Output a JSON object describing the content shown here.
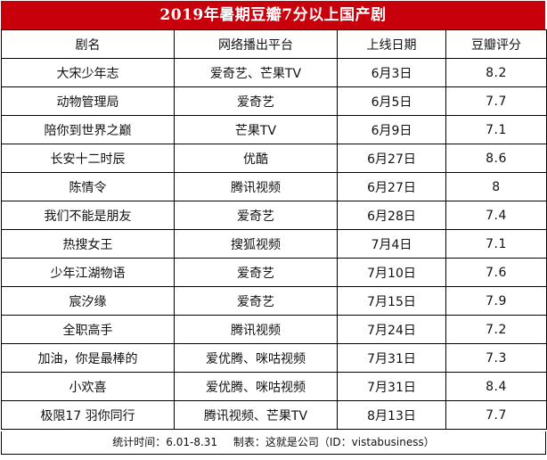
{
  "title": "2019年暑期豆瓣7分以上国产剧",
  "columns": {
    "name": "剧名",
    "platform": "网络播出平台",
    "date": "上线日期",
    "score": "豆瓣评分"
  },
  "rows": [
    {
      "name": "大宋少年志",
      "platform": "爱奇艺、芒果TV",
      "date": "6月3日",
      "score": "8.2"
    },
    {
      "name": "动物管理局",
      "platform": "爱奇艺",
      "date": "6月5日",
      "score": "7.7"
    },
    {
      "name": "陪你到世界之巅",
      "platform": "芒果TV",
      "date": "6月9日",
      "score": "7.1"
    },
    {
      "name": "长安十二时辰",
      "platform": "优酷",
      "date": "6月27日",
      "score": "8.6"
    },
    {
      "name": "陈情令",
      "platform": "腾讯视频",
      "date": "6月27日",
      "score": "8"
    },
    {
      "name": "我们不能是朋友",
      "platform": "爱奇艺",
      "date": "6月28日",
      "score": "7.4"
    },
    {
      "name": "热搜女王",
      "platform": "搜狐视频",
      "date": "7月4日",
      "score": "7.1"
    },
    {
      "name": "少年江湖物语",
      "platform": "爱奇艺",
      "date": "7月10日",
      "score": "7.6"
    },
    {
      "name": "宸汐缘",
      "platform": "爱奇艺",
      "date": "7月15日",
      "score": "7.9"
    },
    {
      "name": "全职高手",
      "platform": "腾讯视频",
      "date": "7月24日",
      "score": "7.2"
    },
    {
      "name": "加油，你是最棒的",
      "platform": "爱优腾、咪咕视频",
      "date": "7月31日",
      "score": "7.3"
    },
    {
      "name": "小欢喜",
      "platform": "爱优腾、咪咕视频",
      "date": "7月31日",
      "score": "8.4"
    },
    {
      "name": "极限17 羽你同行",
      "platform": "腾讯视频、芒果TV",
      "date": "8月13日",
      "score": "7.7"
    }
  ],
  "footer": {
    "stats_time": "统计时间：6.01-8.31",
    "made_by": "制表：这就是公司（ID：vistabusiness）"
  },
  "colors": {
    "title_background": "#c8000b",
    "title_text": "#ffffff",
    "border": "#000000"
  }
}
